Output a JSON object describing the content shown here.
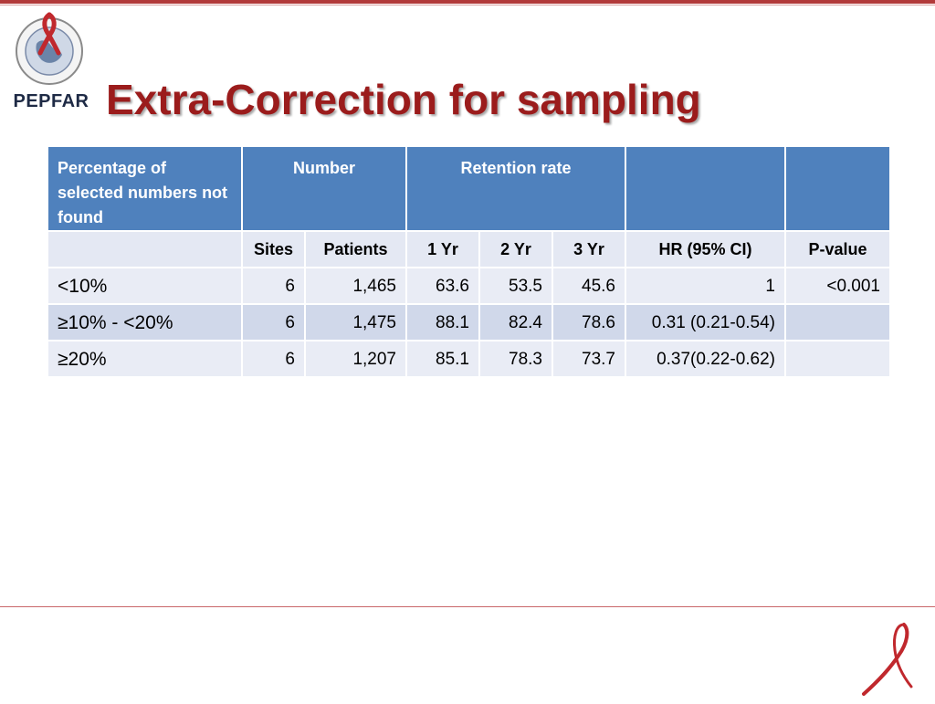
{
  "slide": {
    "title": "Extra-Correction for sampling",
    "logo_text": "PEPFAR"
  },
  "table": {
    "header_top": {
      "col1": "Percentage  of selected numbers not found",
      "number": "Number",
      "retention": "Retention rate",
      "blank1": "",
      "blank2": ""
    },
    "header_sub": {
      "blank": "",
      "sites": "Sites",
      "patients": "Patients",
      "yr1": "1 Yr",
      "yr2": "2 Yr",
      "yr3": "3 Yr",
      "hr": "HR (95% CI)",
      "pvalue": "P-value"
    },
    "rows": [
      {
        "label": "<10%",
        "sites": "6",
        "patients": "1,465",
        "yr1": "63.6",
        "yr2": "53.5",
        "yr3": "45.6",
        "hr": "1",
        "pvalue": "<0.001"
      },
      {
        "label": "≥10% - <20%",
        "sites": "6",
        "patients": "1,475",
        "yr1": "88.1",
        "yr2": "82.4",
        "yr3": "78.6",
        "hr": "0.31 (0.21-0.54)",
        "pvalue": ""
      },
      {
        "label": "≥20%",
        "sites": "6",
        "patients": "1,207",
        "yr1": "85.1",
        "yr2": "78.3",
        "yr3": "73.7",
        "hr": "0.37(0.22-0.62)",
        "pvalue": ""
      }
    ]
  },
  "colors": {
    "title": "#9b1c1c",
    "header": "#4f81bd",
    "row_light": "#e9ecf5",
    "row_dark": "#d0d8ea"
  }
}
